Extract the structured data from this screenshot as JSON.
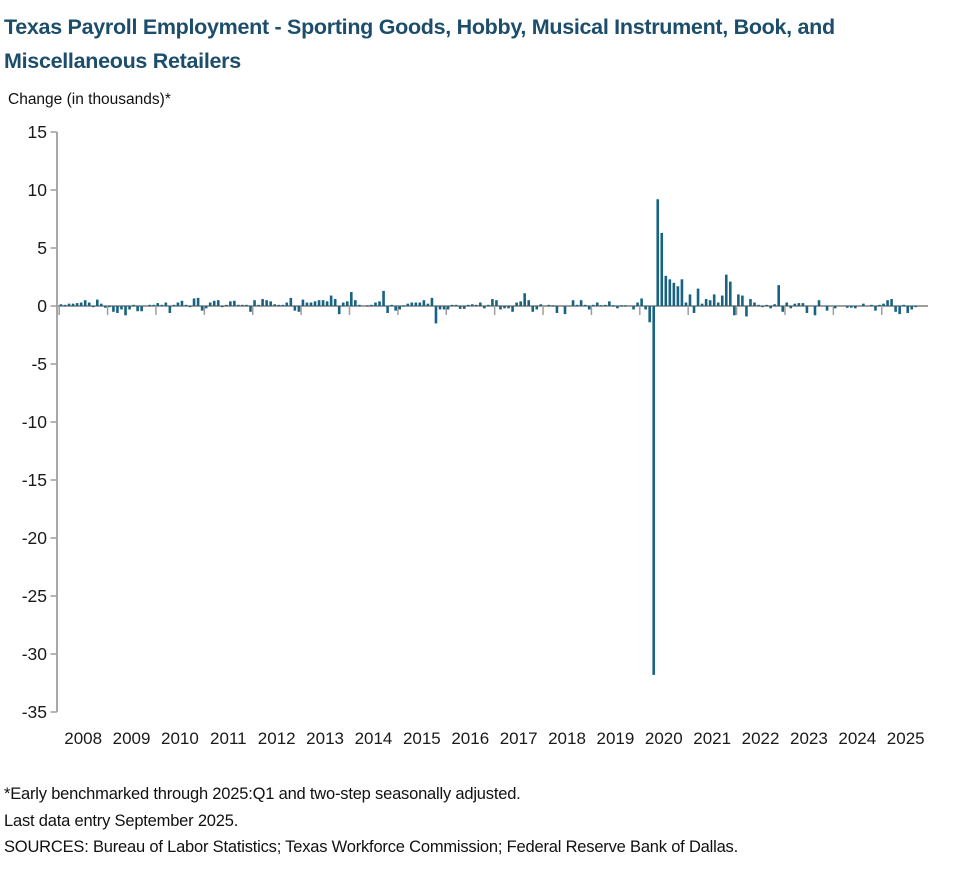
{
  "header": {
    "title_line1": "Texas Payroll Employment - Sporting Goods, Hobby, Musical Instrument, Book, and",
    "title_line2": "Miscellaneous Retailers",
    "y_axis_title": "Change (in thousands)*"
  },
  "footnotes": {
    "line1": "*Early benchmarked through 2025:Q1 and two-step seasonally adjusted.",
    "line2": "Last data entry September 2025.",
    "line3": "SOURCES: Bureau of Labor Statistics; Texas Workforce Commission; Federal Reserve Bank of Dallas."
  },
  "chart_data": {
    "type": "bar",
    "title": "Texas Payroll Employment - Sporting Goods, Hobby, Musical Instrument, Book, and Miscellaneous Retailers",
    "ylabel": "Change (in thousands)*",
    "ylim": [
      -35,
      15
    ],
    "yticks": [
      15,
      10,
      5,
      0,
      -5,
      -10,
      -15,
      -20,
      -25,
      -30,
      -35
    ],
    "xtick_years": [
      2008,
      2009,
      2010,
      2011,
      2012,
      2013,
      2014,
      2015,
      2016,
      2017,
      2018,
      2019,
      2020,
      2021,
      2022,
      2023,
      2024,
      2025
    ],
    "grid": false,
    "legend": "none",
    "bar_color": "#186381",
    "axis_color": "#9e9e9e",
    "start_month": "2008-01",
    "end_month": "2025-09",
    "frequency": "monthly",
    "series": [
      {
        "name": "Monthly change in payroll employment (thousands)",
        "values": [
          0.15,
          0.1,
          0.2,
          0.2,
          0.25,
          0.3,
          0.5,
          0.3,
          -0.1,
          0.55,
          0.2,
          -0.15,
          -0.1,
          -0.5,
          -0.6,
          -0.3,
          -0.8,
          -0.3,
          0.1,
          -0.45,
          -0.45,
          0.0,
          0.1,
          0.1,
          0.25,
          0.1,
          0.3,
          -0.6,
          0.1,
          0.3,
          0.45,
          0.1,
          -0.1,
          0.65,
          0.7,
          -0.4,
          -0.2,
          0.3,
          0.45,
          0.5,
          -0.1,
          0.1,
          0.4,
          0.45,
          0.1,
          0.1,
          0.1,
          -0.5,
          0.5,
          0.1,
          0.6,
          0.5,
          0.4,
          0.15,
          0.1,
          0.1,
          0.3,
          0.7,
          -0.4,
          -0.5,
          0.55,
          0.3,
          0.3,
          0.4,
          0.5,
          0.5,
          0.4,
          0.9,
          0.6,
          -0.7,
          0.3,
          0.4,
          1.2,
          0.5,
          0.1,
          0.0,
          0.05,
          0.1,
          0.3,
          0.4,
          1.3,
          -0.6,
          0.1,
          -0.4,
          -0.3,
          0.05,
          0.2,
          0.3,
          0.3,
          0.3,
          0.5,
          0.2,
          0.7,
          -1.5,
          -0.3,
          -0.3,
          -0.3,
          0.1,
          0.1,
          -0.25,
          -0.25,
          0.1,
          0.15,
          0.1,
          0.3,
          -0.2,
          0.1,
          0.6,
          0.5,
          -0.3,
          -0.2,
          -0.2,
          -0.5,
          0.3,
          0.4,
          1.1,
          0.5,
          -0.5,
          -0.3,
          0.15,
          0.0,
          0.1,
          0.05,
          -0.6,
          0.0,
          -0.7,
          0.0,
          0.5,
          0.1,
          0.5,
          0.1,
          -0.3,
          0.1,
          0.3,
          0.05,
          0.1,
          0.4,
          0.05,
          -0.2,
          0.05,
          0.05,
          0.0,
          -0.3,
          0.3,
          0.65,
          -0.3,
          -1.4,
          -31.8,
          9.2,
          6.3,
          2.6,
          2.3,
          2.0,
          1.7,
          2.3,
          0.3,
          1.0,
          -0.6,
          1.5,
          0.2,
          0.6,
          0.5,
          1.0,
          0.3,
          0.9,
          2.7,
          2.1,
          -0.8,
          1.0,
          0.9,
          -0.9,
          0.6,
          0.3,
          0.1,
          -0.1,
          0.1,
          -0.2,
          0.15,
          1.8,
          -0.5,
          0.3,
          -0.2,
          0.2,
          0.25,
          0.25,
          -0.6,
          0.0,
          -0.8,
          0.5,
          0.0,
          -0.4,
          0.0,
          -0.2,
          0.0,
          0.0,
          -0.15,
          -0.15,
          -0.2,
          0.0,
          0.2,
          0.0,
          0.1,
          -0.4,
          0.1,
          0.2,
          0.5,
          0.6,
          -0.5,
          -0.7,
          0.1,
          -0.6,
          -0.3,
          -0.1
        ]
      }
    ],
    "annotations": {
      "min_value": -31.8,
      "min_value_month": "2020-04",
      "max_value": 9.2,
      "max_value_month": "2020-05"
    }
  }
}
